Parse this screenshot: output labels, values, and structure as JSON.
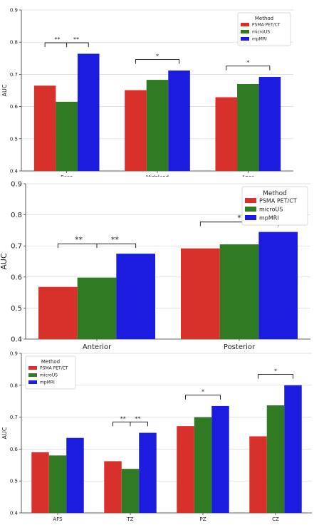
{
  "chart_data": [
    {
      "type": "bar",
      "title": "",
      "xlabel": "",
      "ylabel": "AUC",
      "ylim": [
        0.4,
        0.9
      ],
      "yticks": [
        "0.4",
        "0.5",
        "0.6",
        "0.7",
        "0.8",
        "0.9"
      ],
      "categories": [
        "Base",
        "Midgland",
        "Apex"
      ],
      "series": [
        {
          "name": "PSMA PET/CT",
          "color": "#d8302a",
          "values": [
            0.665,
            0.651,
            0.629
          ]
        },
        {
          "name": "microUS",
          "color": "#2f7a22",
          "values": [
            0.615,
            0.683,
            0.67
          ]
        },
        {
          "name": "mpMRI",
          "color": "#1c1ce0",
          "values": [
            0.764,
            0.712,
            0.692
          ]
        }
      ],
      "legend": {
        "title": "Method",
        "position": "top-right"
      },
      "grid": "y",
      "significance": [
        {
          "category": "Base",
          "labels": [
            "**",
            "**"
          ]
        },
        {
          "category": "Midgland",
          "labels": [
            "*"
          ]
        },
        {
          "category": "Apex",
          "labels": [
            "*"
          ]
        }
      ]
    },
    {
      "type": "bar",
      "title": "",
      "xlabel": "",
      "ylabel": "AUC",
      "ylim": [
        0.4,
        0.9
      ],
      "yticks": [
        "0.4",
        "0.5",
        "0.6",
        "0.7",
        "0.8",
        "0.9"
      ],
      "categories": [
        "Anterior",
        "Posterior"
      ],
      "series": [
        {
          "name": "PSMA PET/CT",
          "color": "#d8302a",
          "values": [
            0.568,
            0.692
          ]
        },
        {
          "name": "microUS",
          "color": "#2f7a22",
          "values": [
            0.598,
            0.705
          ]
        },
        {
          "name": "mpMRI",
          "color": "#1c1ce0",
          "values": [
            0.675,
            0.745
          ]
        }
      ],
      "legend": {
        "title": "Method",
        "position": "top-right"
      },
      "grid": "y",
      "significance": [
        {
          "category": "Anterior",
          "labels": [
            "**",
            "**"
          ]
        },
        {
          "category": "Posterior",
          "labels": [
            "*"
          ]
        }
      ]
    },
    {
      "type": "bar",
      "title": "",
      "xlabel": "",
      "ylabel": "AUC",
      "ylim": [
        0.4,
        0.9
      ],
      "yticks": [
        "0.4",
        "0.5",
        "0.6",
        "0.7",
        "0.8",
        "0.9"
      ],
      "categories": [
        "AFS",
        "TZ",
        "PZ",
        "CZ"
      ],
      "series": [
        {
          "name": "PSMA PET/CT",
          "color": "#d8302a",
          "values": [
            0.59,
            0.562,
            0.672,
            0.64
          ]
        },
        {
          "name": "microUS",
          "color": "#2f7a22",
          "values": [
            0.58,
            0.538,
            0.7,
            0.737
          ]
        },
        {
          "name": "mpMRI",
          "color": "#1c1ce0",
          "values": [
            0.635,
            0.651,
            0.735,
            0.8
          ]
        }
      ],
      "legend": {
        "title": "Method",
        "position": "top-left"
      },
      "grid": "y",
      "significance": [
        {
          "category": "TZ",
          "labels": [
            "**",
            "**"
          ]
        },
        {
          "category": "PZ",
          "labels": [
            "*"
          ]
        },
        {
          "category": "CZ",
          "labels": [
            "*"
          ]
        }
      ]
    }
  ]
}
